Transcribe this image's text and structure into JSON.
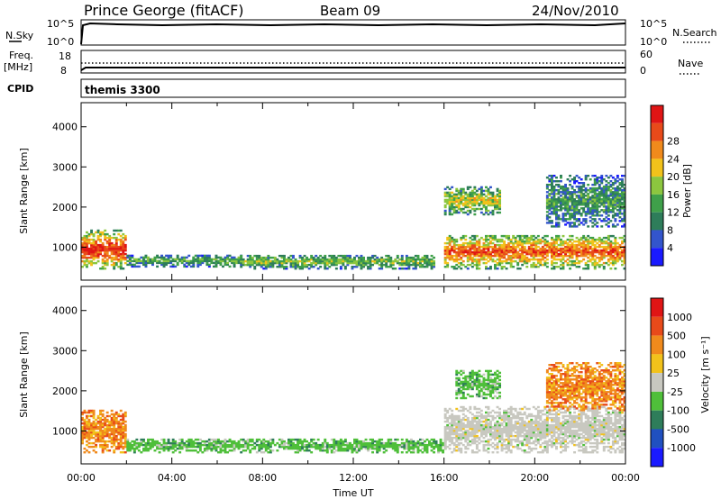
{
  "header": {
    "station": "Prince George (fitACF)",
    "beam": "Beam 09",
    "date": "24/Nov/2010"
  },
  "summary_panel": {
    "left_nsky": "N.Sky",
    "left_nsky_ticks": [
      "10^5",
      "10^0"
    ],
    "right_nsearch_ticks": [
      "10^5",
      "10^0"
    ],
    "right_nsearch": "N.Search",
    "left_freq_label_1": "Freq.",
    "left_freq_label_2": "[MHz]",
    "left_freq_ticks": [
      "18",
      "8"
    ],
    "right_nave_ticks": [
      "60",
      "0"
    ],
    "right_nave": "Nave",
    "cpid_label": "CPID",
    "cpid_value": "themis 3300"
  },
  "time_axis": {
    "tick_labels": [
      "00:00",
      "04:00",
      "08:00",
      "12:00",
      "16:00",
      "20:00",
      "00:00"
    ],
    "title": "Time UT"
  },
  "chart_data": [
    {
      "type": "heatmap",
      "name": "power",
      "ylabel": "Slant Range [km]",
      "yticks": [
        "1000",
        "2000",
        "3000",
        "4000"
      ],
      "ylim": [
        180,
        4600
      ],
      "xlim_hours": [
        0,
        24
      ],
      "colorbar": {
        "label": "Power [dB]",
        "ticks": [
          "4",
          "8",
          "12",
          "16",
          "20",
          "24",
          "28"
        ],
        "colors": [
          "#1a1aff",
          "#3355cc",
          "#2e7d5a",
          "#3fa04a",
          "#8cc63f",
          "#f2c21b",
          "#f08a1c",
          "#e84a1a",
          "#e01515"
        ]
      },
      "regions": [
        {
          "t0": 0.0,
          "t1": 2.0,
          "r0": 450,
          "r1": 1400,
          "level": 0.85
        },
        {
          "t0": 2.0,
          "t1": 7.0,
          "r0": 500,
          "r1": 800,
          "level": 0.35
        },
        {
          "t0": 7.0,
          "t1": 15.5,
          "r0": 450,
          "r1": 800,
          "level": 0.4
        },
        {
          "t0": 16.0,
          "t1": 24.0,
          "r0": 450,
          "r1": 1300,
          "level": 0.75
        },
        {
          "t0": 16.0,
          "t1": 18.5,
          "r0": 1800,
          "r1": 2500,
          "level": 0.5
        },
        {
          "t0": 20.5,
          "t1": 24.0,
          "r0": 1500,
          "r1": 2800,
          "level": 0.3
        }
      ]
    },
    {
      "type": "heatmap",
      "name": "velocity",
      "ylabel": "Slant Range [km]",
      "yticks": [
        "1000",
        "2000",
        "3000",
        "4000"
      ],
      "ylim": [
        180,
        4600
      ],
      "xlim_hours": [
        0,
        24
      ],
      "colorbar": {
        "label": "Velocity [m s⁻¹]",
        "ticks": [
          "1000",
          "500",
          "100",
          "25",
          "-25",
          "-100",
          "-500",
          "-1000"
        ],
        "colors": [
          "#1a1aff",
          "#2050c0",
          "#2e7d5a",
          "#4fbf3a",
          "#c8c8c0",
          "#f2c21b",
          "#f08a1c",
          "#e84a1a",
          "#e01515"
        ]
      },
      "regions": [
        {
          "t0": 0.0,
          "t1": 2.0,
          "r0": 450,
          "r1": 1500,
          "class": "negative"
        },
        {
          "t0": 2.0,
          "t1": 16.0,
          "r0": 450,
          "r1": 800,
          "class": "positive"
        },
        {
          "t0": 16.0,
          "t1": 24.0,
          "r0": 450,
          "r1": 1600,
          "class": "ground"
        },
        {
          "t0": 16.5,
          "t1": 18.5,
          "r0": 1800,
          "r1": 2500,
          "class": "positive"
        },
        {
          "t0": 20.5,
          "t1": 24.0,
          "r0": 1500,
          "r1": 2700,
          "class": "negative"
        }
      ]
    }
  ]
}
